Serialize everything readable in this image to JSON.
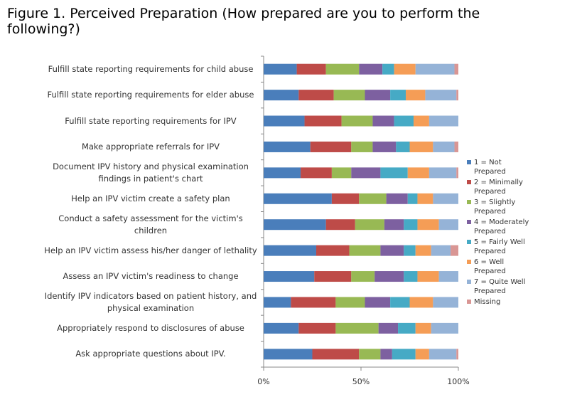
{
  "chart_data": {
    "type": "bar",
    "orientation": "horizontal",
    "stacked": true,
    "title": "Figure 1. Perceived Preparation (How prepared are you to perform the following?)",
    "categories": [
      "Fulfill state reporting requirements for child abuse",
      "Fulfill state reporting requirements for elder abuse",
      "Fulfill state reporting requirements for IPV",
      "Make appropriate referrals for IPV",
      "Document  IPV history and physical examination findings in patient's chart",
      "Help an IPV victim create a safety plan",
      "Conduct a safety assessment for the victim's children",
      "Help an IPV victim assess his/her danger of lethality",
      "Assess an IPV victim's readiness to change",
      "Identify IPV indicators based on patient history, and physical examination",
      "Appropriately respond to disclosures of abuse",
      "Ask appropriate questions about IPV."
    ],
    "series": [
      {
        "name": "1 = Not Prepared",
        "color": "#4a7ebb",
        "values": [
          17,
          18,
          21,
          24,
          19,
          35,
          32,
          27,
          26,
          14,
          18,
          25
        ]
      },
      {
        "name": "2 = Minimally Prepared",
        "color": "#be4b48",
        "values": [
          15,
          18,
          19,
          21,
          16,
          14,
          15,
          17,
          19,
          23,
          19,
          24
        ]
      },
      {
        "name": "3 = Slightly Prepared",
        "color": "#98b954",
        "values": [
          17,
          16,
          16,
          11,
          10,
          14,
          15,
          16,
          12,
          15,
          22,
          11
        ]
      },
      {
        "name": "4 = Moderately Prepared",
        "color": "#7d60a0",
        "values": [
          12,
          13,
          11,
          12,
          15,
          11,
          10,
          12,
          15,
          13,
          10,
          6
        ]
      },
      {
        "name": "5 = Fairly Well Prepared",
        "color": "#46aac5",
        "values": [
          6,
          8,
          10,
          7,
          14,
          5,
          7,
          6,
          7,
          10,
          9,
          12
        ]
      },
      {
        "name": "6 = Well Prepared",
        "color": "#f59d56",
        "values": [
          11,
          10,
          8,
          12,
          11,
          8,
          11,
          8,
          11,
          12,
          8,
          7
        ]
      },
      {
        "name": "7 = Quite Well Prepared",
        "color": "#95b3d7",
        "values": [
          20,
          16,
          15,
          11,
          14,
          13,
          10,
          10,
          10,
          13,
          14,
          14
        ]
      },
      {
        "name": "Missing",
        "color": "#d99694",
        "values": [
          2,
          1,
          0,
          2,
          1,
          0,
          0,
          4,
          0,
          0,
          0,
          1
        ]
      }
    ],
    "xlim": [
      0,
      100
    ],
    "xticks": [
      {
        "value": 0,
        "label": "0%"
      },
      {
        "value": 50,
        "label": "50%"
      },
      {
        "value": 100,
        "label": "100%"
      }
    ],
    "grid": false,
    "legend": "right"
  }
}
